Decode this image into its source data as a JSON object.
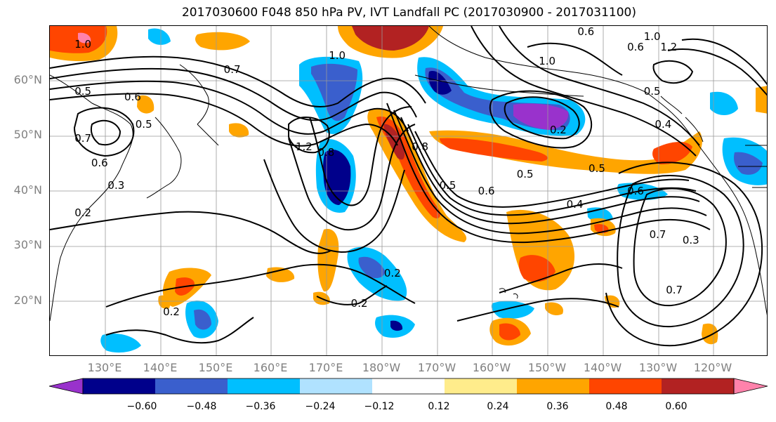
{
  "title": "2017030600 F048 850 hPa PV, IVT Landfall PC (2017030900 - 2017031100)",
  "map": {
    "lat_labels": [
      "60°N",
      "50°N",
      "40°N",
      "30°N",
      "20°N"
    ],
    "lon_labels": [
      "130°E",
      "140°E",
      "150°E",
      "160°E",
      "170°E",
      "180°W",
      "170°W",
      "160°W",
      "150°W",
      "140°W",
      "130°W",
      "120°W"
    ],
    "contour_labels": [
      {
        "text": "1.0",
        "lat": 66.5,
        "lon": 126
      },
      {
        "text": "1.0",
        "lat": 64.5,
        "lon": 172
      },
      {
        "text": "0.6",
        "lat": 69,
        "lon": 217
      },
      {
        "text": "1.0",
        "lat": 63.5,
        "lon": 210
      },
      {
        "text": "0.7",
        "lat": 62,
        "lon": 153
      },
      {
        "text": "0.5",
        "lat": 58,
        "lon": 126
      },
      {
        "text": "0.6",
        "lat": 57,
        "lon": 135
      },
      {
        "text": "0.7",
        "lat": 49.5,
        "lon": 126
      },
      {
        "text": "0.5",
        "lat": 52,
        "lon": 137
      },
      {
        "text": "0.6",
        "lat": 45,
        "lon": 129
      },
      {
        "text": "0.3",
        "lat": 41,
        "lon": 132
      },
      {
        "text": "1.2",
        "lat": 48,
        "lon": 166
      },
      {
        "text": "0.8",
        "lat": 47,
        "lon": 170
      },
      {
        "text": "0.8",
        "lat": 48,
        "lon": 187
      },
      {
        "text": "0.5",
        "lat": 41,
        "lon": 192
      },
      {
        "text": "0.6",
        "lat": 40,
        "lon": 199
      },
      {
        "text": "0.5",
        "lat": 43,
        "lon": 206
      },
      {
        "text": "0.2",
        "lat": 51,
        "lon": 212
      },
      {
        "text": "0.5",
        "lat": 44,
        "lon": 219
      },
      {
        "text": "0.5",
        "lat": 58,
        "lon": 229
      },
      {
        "text": "0.4",
        "lat": 52,
        "lon": 231
      },
      {
        "text": "0.6",
        "lat": 40,
        "lon": 226
      },
      {
        "text": "0.4",
        "lat": 37.5,
        "lon": 215
      },
      {
        "text": "0.2",
        "lat": 25,
        "lon": 182
      },
      {
        "text": "0.2",
        "lat": 19.5,
        "lon": 176
      },
      {
        "text": "0.2",
        "lat": 18,
        "lon": 142
      },
      {
        "text": "0.2",
        "lat": 36,
        "lon": 126
      },
      {
        "text": "0.7",
        "lat": 32,
        "lon": 230
      },
      {
        "text": "0.7",
        "lat": 22,
        "lon": 233
      },
      {
        "text": "0.3",
        "lat": 31,
        "lon": 236
      },
      {
        "text": "0.6",
        "lat": 66,
        "lon": 226
      },
      {
        "text": "1.0",
        "lat": 68,
        "lon": 229
      },
      {
        "text": "1.2",
        "lat": 66,
        "lon": 232
      }
    ]
  },
  "colorbar": {
    "tick_labels": [
      "−0.60",
      "−0.48",
      "−0.36",
      "−0.24",
      "−0.12",
      "0.12",
      "0.24",
      "0.36",
      "0.48",
      "0.60"
    ],
    "colors": [
      "#9932cc",
      "#00008b",
      "#3a5fcd",
      "#00bfff",
      "#b0e2ff",
      "#ffffff",
      "#ffec8b",
      "#ffa500",
      "#ff4500",
      "#b22222",
      "#ff82ab"
    ],
    "extend": "both"
  },
  "legend_colors": {
    "deep_neg": "#9932cc",
    "navy": "#00008b",
    "royal": "#3a5fcd",
    "sky": "#00bfff",
    "pale": "#b0e2ff",
    "yellow": "#ffec8b",
    "orange": "#ffa500",
    "red_orange": "#ff4500",
    "firebrick": "#b22222",
    "pink": "#ff82ab"
  }
}
